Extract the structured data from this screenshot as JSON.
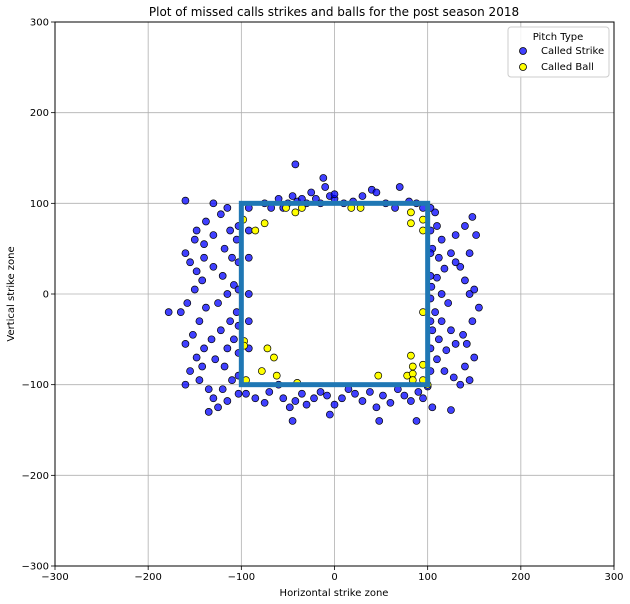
{
  "chart_data": {
    "type": "scatter",
    "title": "Plot of missed calls strikes and balls for the post season 2018",
    "xlabel": "Horizontal strike zone",
    "ylabel": "Vertical strike zone",
    "xlim": [
      -300,
      300
    ],
    "ylim": [
      -300,
      300
    ],
    "xticks": [
      -300,
      -200,
      -100,
      0,
      100,
      200,
      300
    ],
    "yticks": [
      -300,
      -200,
      -100,
      0,
      100,
      200,
      300
    ],
    "grid": true,
    "legend": {
      "title": "Pitch Type",
      "position": "top-right"
    },
    "strike_zone": {
      "x": [
        -100,
        100
      ],
      "y": [
        -100,
        100
      ],
      "color": "#1f77b4"
    },
    "series": [
      {
        "name": "Called Strike",
        "color": "#0000ff",
        "points": [
          [
            -160,
            103
          ],
          [
            -148,
            70
          ],
          [
            -138,
            80
          ],
          [
            -130,
            65
          ],
          [
            -140,
            55
          ],
          [
            -150,
            60
          ],
          [
            -160,
            45
          ],
          [
            -155,
            35
          ],
          [
            -148,
            25
          ],
          [
            -142,
            15
          ],
          [
            -150,
            5
          ],
          [
            -158,
            -10
          ],
          [
            -165,
            -20
          ],
          [
            -178,
            -20
          ],
          [
            -145,
            -30
          ],
          [
            -152,
            -45
          ],
          [
            -160,
            -55
          ],
          [
            -140,
            -60
          ],
          [
            -148,
            -70
          ],
          [
            -155,
            -85
          ],
          [
            -145,
            -95
          ],
          [
            -135,
            -105
          ],
          [
            -160,
            -100
          ],
          [
            -130,
            -115
          ],
          [
            -135,
            -130
          ],
          [
            -125,
            -125
          ],
          [
            -120,
            -105
          ],
          [
            -110,
            -95
          ],
          [
            -118,
            -80
          ],
          [
            -128,
            -72
          ],
          [
            -115,
            -60
          ],
          [
            -108,
            -50
          ],
          [
            -122,
            -40
          ],
          [
            -112,
            -30
          ],
          [
            -105,
            -20
          ],
          [
            -125,
            -10
          ],
          [
            -115,
            0
          ],
          [
            -108,
            10
          ],
          [
            -120,
            20
          ],
          [
            -130,
            30
          ],
          [
            -110,
            40
          ],
          [
            -118,
            50
          ],
          [
            -105,
            60
          ],
          [
            -112,
            70
          ],
          [
            -122,
            88
          ],
          [
            -115,
            95
          ],
          [
            -130,
            100
          ],
          [
            -140,
            40
          ],
          [
            -138,
            -15
          ],
          [
            -132,
            -50
          ],
          [
            -142,
            -80
          ],
          [
            -103,
            -65
          ],
          [
            -103,
            -35
          ],
          [
            -103,
            5
          ],
          [
            -103,
            35
          ],
          [
            -103,
            75
          ],
          [
            -103,
            -90
          ],
          [
            -103,
            -110
          ],
          [
            -115,
            -118
          ],
          [
            -95,
            -110
          ],
          [
            -85,
            -115
          ],
          [
            -75,
            -120
          ],
          [
            -70,
            -108
          ],
          [
            -60,
            -100
          ],
          [
            -55,
            -115
          ],
          [
            -48,
            -125
          ],
          [
            -42,
            -118
          ],
          [
            -35,
            -110
          ],
          [
            -30,
            -122
          ],
          [
            -22,
            -115
          ],
          [
            -15,
            -108
          ],
          [
            -8,
            -112
          ],
          [
            0,
            -122
          ],
          [
            8,
            -115
          ],
          [
            15,
            -105
          ],
          [
            22,
            -110
          ],
          [
            30,
            -118
          ],
          [
            38,
            -108
          ],
          [
            45,
            -125
          ],
          [
            52,
            -112
          ],
          [
            60,
            -120
          ],
          [
            68,
            -105
          ],
          [
            75,
            -112
          ],
          [
            82,
            -118
          ],
          [
            90,
            -108
          ],
          [
            95,
            -115
          ],
          [
            100,
            -102
          ],
          [
            -45,
            -140
          ],
          [
            -5,
            -133
          ],
          [
            48,
            -140
          ],
          [
            88,
            -140
          ],
          [
            105,
            -125
          ],
          [
            125,
            -128
          ],
          [
            108,
            90
          ],
          [
            110,
            75
          ],
          [
            115,
            60
          ],
          [
            105,
            50
          ],
          [
            112,
            40
          ],
          [
            118,
            28
          ],
          [
            110,
            18
          ],
          [
            104,
            8
          ],
          [
            115,
            0
          ],
          [
            122,
            -10
          ],
          [
            108,
            -20
          ],
          [
            115,
            -30
          ],
          [
            105,
            -40
          ],
          [
            112,
            -50
          ],
          [
            120,
            -62
          ],
          [
            110,
            -72
          ],
          [
            118,
            -85
          ],
          [
            128,
            -92
          ],
          [
            135,
            -100
          ],
          [
            145,
            -95
          ],
          [
            140,
            -80
          ],
          [
            150,
            -70
          ],
          [
            142,
            -55
          ],
          [
            138,
            -45
          ],
          [
            148,
            -30
          ],
          [
            155,
            -15
          ],
          [
            145,
            0
          ],
          [
            150,
            5
          ],
          [
            140,
            15
          ],
          [
            135,
            30
          ],
          [
            145,
            45
          ],
          [
            152,
            65
          ],
          [
            140,
            75
          ],
          [
            130,
            65
          ],
          [
            125,
            45
          ],
          [
            130,
            35
          ],
          [
            148,
            85
          ],
          [
            125,
            -40
          ],
          [
            130,
            -55
          ],
          [
            103,
            -85
          ],
          [
            103,
            -60
          ],
          [
            103,
            -30
          ],
          [
            103,
            20
          ],
          [
            103,
            45
          ],
          [
            103,
            70
          ],
          [
            103,
            95
          ],
          [
            103,
            -5
          ],
          [
            -75,
            100
          ],
          [
            -68,
            95
          ],
          [
            -60,
            105
          ],
          [
            -50,
            100
          ],
          [
            -45,
            108
          ],
          [
            -40,
            102
          ],
          [
            -35,
            105
          ],
          [
            -30,
            100
          ],
          [
            -25,
            112
          ],
          [
            -20,
            105
          ],
          [
            -15,
            100
          ],
          [
            -10,
            118
          ],
          [
            -5,
            108
          ],
          [
            0,
            105
          ],
          [
            10,
            100
          ],
          [
            20,
            102
          ],
          [
            30,
            108
          ],
          [
            40,
            115
          ],
          [
            45,
            112
          ],
          [
            55,
            100
          ],
          [
            65,
            95
          ],
          [
            70,
            118
          ],
          [
            80,
            102
          ],
          [
            88,
            100
          ],
          [
            95,
            95
          ],
          [
            -42,
            143
          ],
          [
            -12,
            128
          ],
          [
            0,
            110
          ],
          [
            -55,
            95
          ],
          [
            -92,
            -60
          ],
          [
            -92,
            -30
          ],
          [
            -92,
            0
          ],
          [
            -92,
            40
          ],
          [
            -92,
            70
          ],
          [
            -92,
            95
          ]
        ]
      },
      {
        "name": "Called Ball",
        "color": "#ffff00",
        "points": [
          [
            -98,
            82
          ],
          [
            -85,
            70
          ],
          [
            -75,
            78
          ],
          [
            -52,
            95
          ],
          [
            -42,
            90
          ],
          [
            -35,
            95
          ],
          [
            18,
            95
          ],
          [
            28,
            95
          ],
          [
            82,
            90
          ],
          [
            95,
            82
          ],
          [
            82,
            78
          ],
          [
            95,
            70
          ],
          [
            -97,
            -52
          ],
          [
            -97,
            -57
          ],
          [
            -72,
            -60
          ],
          [
            -65,
            -70
          ],
          [
            -78,
            -85
          ],
          [
            -62,
            -90
          ],
          [
            -95,
            -95
          ],
          [
            -40,
            -98
          ],
          [
            47,
            -90
          ],
          [
            78,
            -90
          ],
          [
            84,
            -88
          ],
          [
            84,
            -95
          ],
          [
            84,
            -80
          ],
          [
            82,
            -68
          ],
          [
            95,
            -78
          ],
          [
            95,
            -20
          ],
          [
            100,
            -100
          ],
          [
            95,
            -95
          ]
        ]
      }
    ]
  }
}
